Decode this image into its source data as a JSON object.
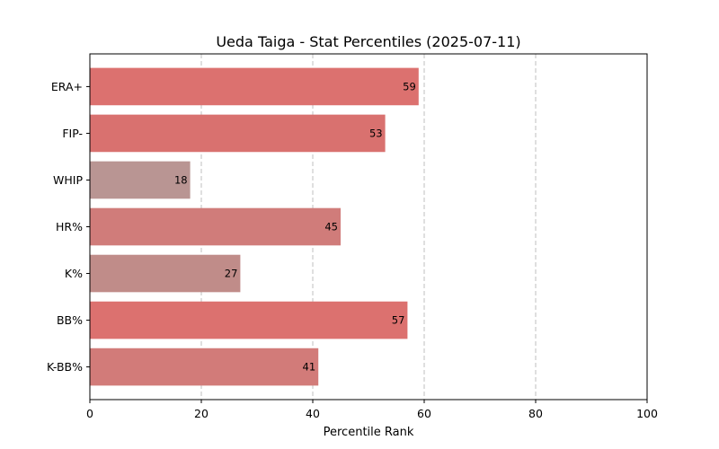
{
  "chart_data": {
    "type": "bar",
    "orientation": "horizontal",
    "title": "Ueda Taiga - Stat Percentiles (2025-07-11)",
    "xlabel": "Percentile Rank",
    "ylabel": "",
    "xlim": [
      0,
      100
    ],
    "xticks": [
      "0",
      "20",
      "40",
      "60",
      "80",
      "100"
    ],
    "grid": "x-dashed",
    "categories": [
      "ERA+",
      "FIP-",
      "WHIP",
      "HR%",
      "K%",
      "BB%",
      "K-BB%"
    ],
    "values": [
      59,
      53,
      18,
      45,
      27,
      57,
      41
    ],
    "colors": [
      "#dc716f",
      "#d9716f",
      "#b99593",
      "#d07c7a",
      "#c08c89",
      "#dc716f",
      "#d27b79"
    ]
  }
}
